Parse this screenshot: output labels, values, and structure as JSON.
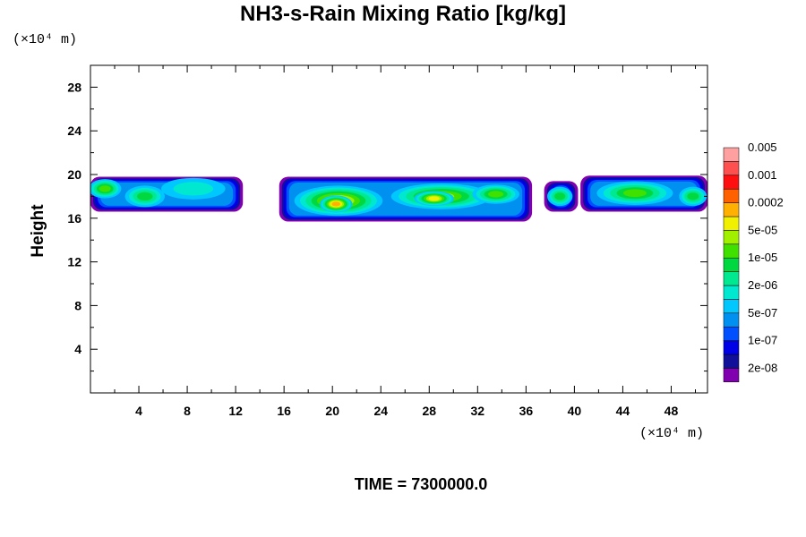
{
  "chart_data": {
    "type": "heatmap",
    "title": "NH3-s-Rain Mixing Ratio [kg/kg]",
    "ylabel": "Height",
    "x_unit": "(×10⁴ m)",
    "y_unit": "(×10⁴ m)",
    "xlim": [
      0,
      51
    ],
    "ylim": [
      0,
      30
    ],
    "x_ticks": [
      4,
      8,
      12,
      16,
      20,
      24,
      28,
      32,
      36,
      40,
      44,
      48
    ],
    "y_ticks": [
      4,
      8,
      12,
      16,
      20,
      24,
      28
    ],
    "footer": "TIME = 7300000.0",
    "colorbar": {
      "colors": [
        "#8000b0",
        "#10109a",
        "#0000e6",
        "#0050ff",
        "#0090f0",
        "#00c8ff",
        "#00e8d0",
        "#00e890",
        "#00d840",
        "#40e000",
        "#a0f000",
        "#f0f000",
        "#ffb000",
        "#ff6000",
        "#ff1010",
        "#ff5050",
        "#ffa0a0"
      ],
      "labels": [
        "2e-08",
        "1e-07",
        "5e-07",
        "2e-06",
        "1e-05",
        "5e-05",
        "0.0002",
        "0.001",
        "0.005"
      ]
    },
    "clouds": [
      {
        "x0": 0,
        "x1": 12.6,
        "y0": 16.6,
        "y1": 19.8
      },
      {
        "x0": 15.6,
        "x1": 36.5,
        "y0": 15.7,
        "y1": 19.8
      },
      {
        "x0": 37.5,
        "x1": 40.3,
        "y0": 16.6,
        "y1": 19.4
      },
      {
        "x0": 40.5,
        "x1": 51,
        "y0": 16.6,
        "y1": 19.9
      }
    ],
    "cores": [
      {
        "x": 1.2,
        "y": 18.7,
        "rx": 1.2,
        "ry": 0.8,
        "level": 9
      },
      {
        "x": 4.5,
        "y": 18.0,
        "rx": 1.5,
        "ry": 0.9,
        "level": 8
      },
      {
        "x": 8.5,
        "y": 18.7,
        "rx": 2.5,
        "ry": 0.9,
        "level": 6
      },
      {
        "x": 20.5,
        "y": 17.6,
        "rx": 3.5,
        "ry": 1.3,
        "level": 11
      },
      {
        "x": 20.3,
        "y": 17.3,
        "rx": 1.2,
        "ry": 0.7,
        "level": 12
      },
      {
        "x": 29.0,
        "y": 18.0,
        "rx": 4.0,
        "ry": 1.1,
        "level": 10
      },
      {
        "x": 28.4,
        "y": 17.8,
        "rx": 1.5,
        "ry": 0.6,
        "level": 11
      },
      {
        "x": 33.5,
        "y": 18.2,
        "rx": 1.8,
        "ry": 0.8,
        "level": 9
      },
      {
        "x": 38.8,
        "y": 18.0,
        "rx": 0.9,
        "ry": 0.8,
        "level": 8
      },
      {
        "x": 45.0,
        "y": 18.3,
        "rx": 3.0,
        "ry": 1.0,
        "level": 9
      },
      {
        "x": 49.8,
        "y": 18.0,
        "rx": 1.0,
        "ry": 0.8,
        "level": 8
      }
    ]
  }
}
